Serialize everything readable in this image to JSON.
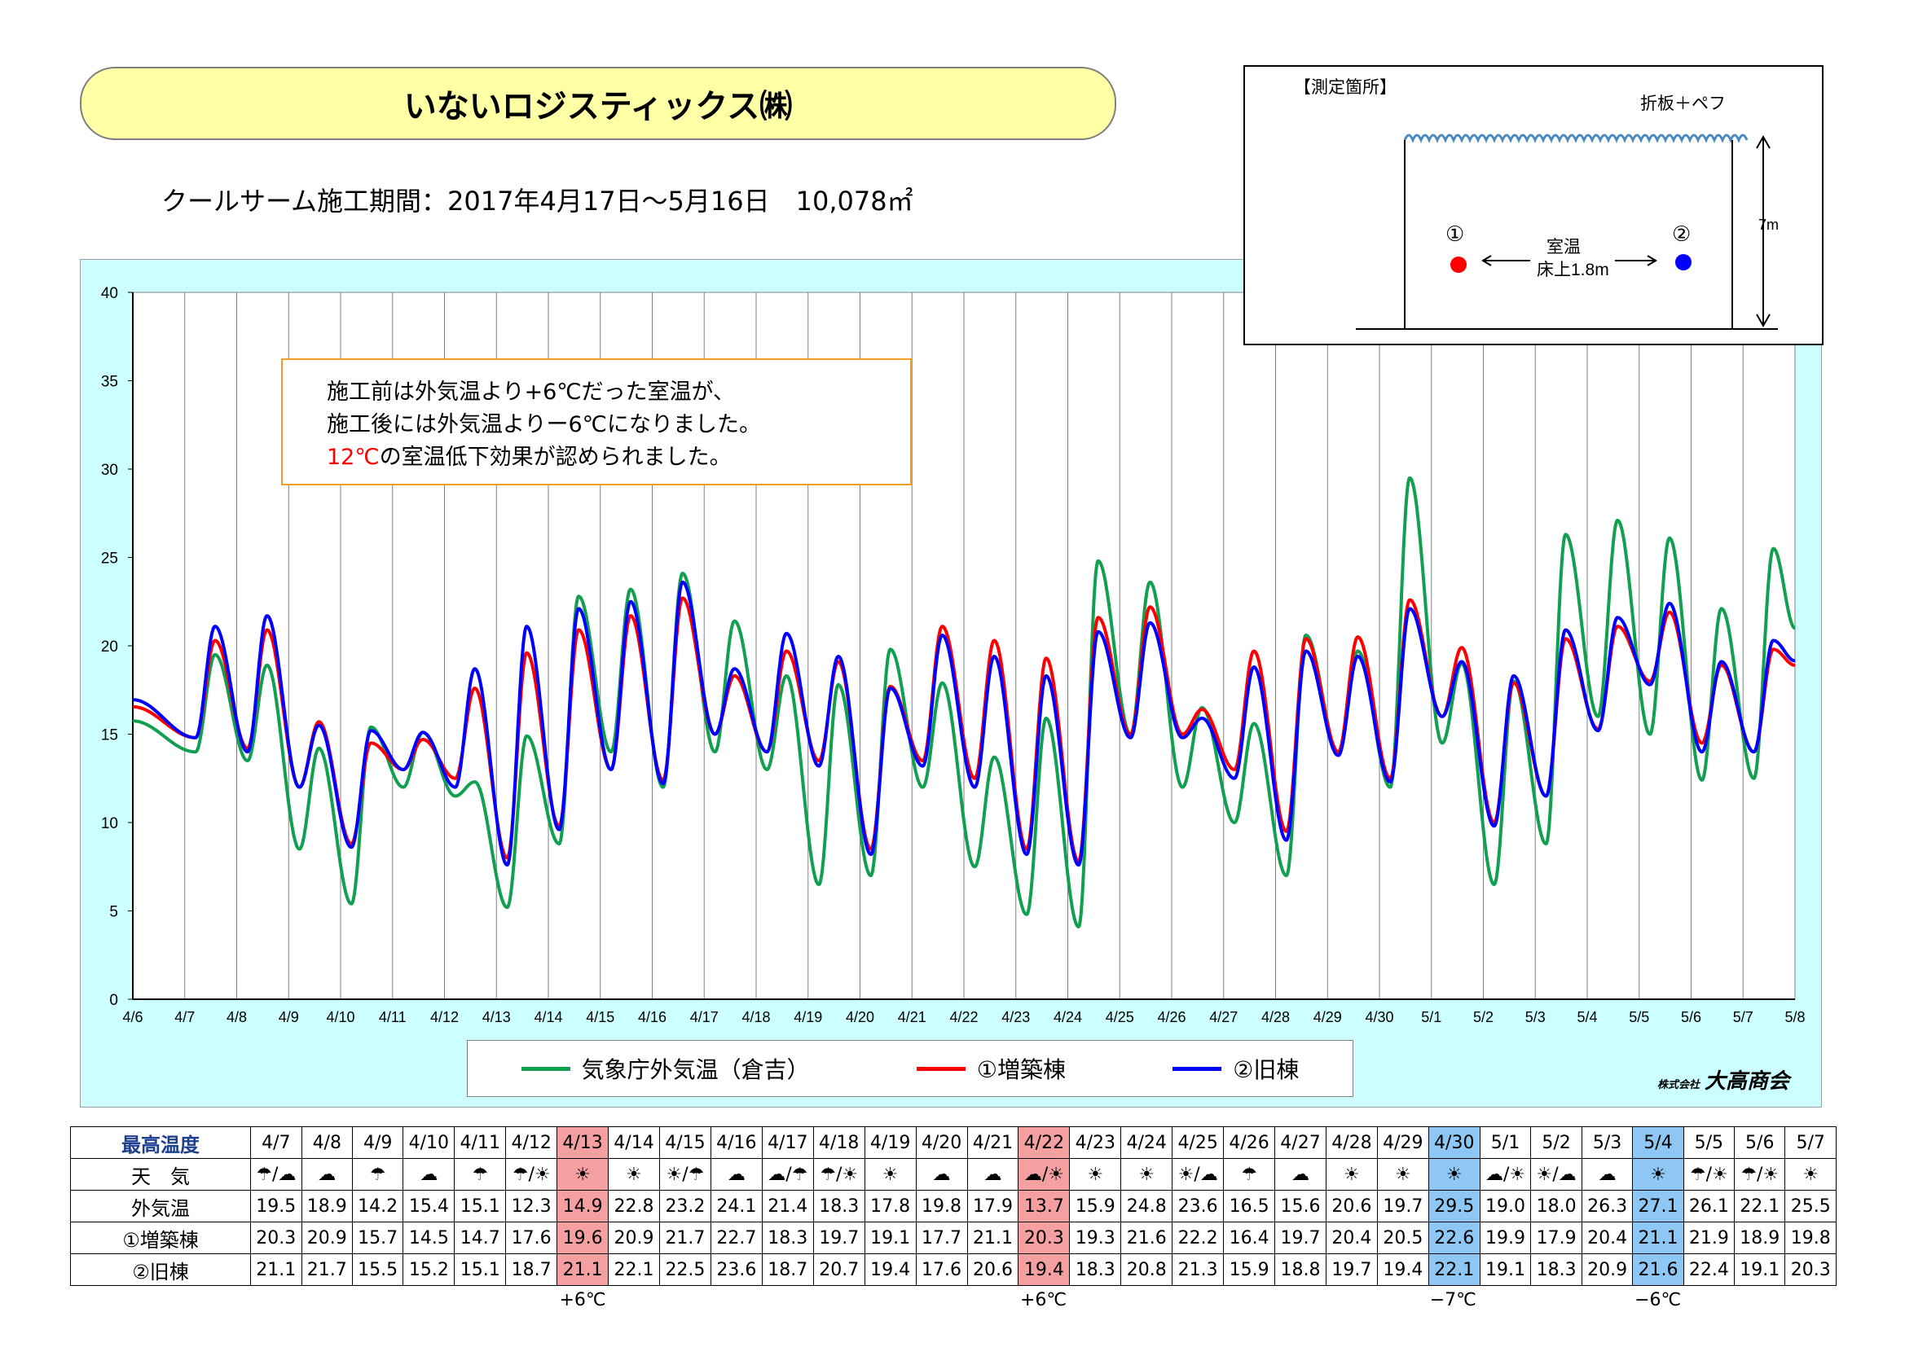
{
  "title": "いないロジスティックス㈱",
  "period": "クールサーム施工期間：2017年4月17日～5月16日　10,078㎡",
  "annotation": {
    "line1": "施工前は外気温より+6℃だった室温が、",
    "line2": "施工後には外気温よりー6℃になりました。",
    "line3_red": "12℃",
    "line3_rest": "の室温低下効果が認められました。"
  },
  "diagram": {
    "heading": "【測定箇所】",
    "roof_label": "折板＋ペフ",
    "height_label": "7m",
    "point1": "①",
    "point2": "②",
    "room_label": "室温",
    "floor_label": "床上1.8m",
    "point1_color": "#ff0000",
    "point2_color": "#0000ff"
  },
  "legend": [
    {
      "name": "気象庁外気温（倉吉）",
      "color": "#10a050"
    },
    {
      "name": "①増築棟",
      "color": "#ff0000"
    },
    {
      "name": "②旧棟",
      "color": "#0000ff"
    }
  ],
  "logo": {
    "small": "株式会社",
    "name": "大高商会"
  },
  "chart_data": {
    "type": "line",
    "ylim": [
      0,
      40
    ],
    "yticks": [
      0,
      5,
      10,
      15,
      20,
      25,
      30,
      35,
      40
    ],
    "xticks": [
      "4/6",
      "4/7",
      "4/8",
      "4/9",
      "4/10",
      "4/11",
      "4/12",
      "4/13",
      "4/14",
      "4/15",
      "4/16",
      "4/17",
      "4/18",
      "4/19",
      "4/20",
      "4/21",
      "4/22",
      "4/23",
      "4/24",
      "4/25",
      "4/26",
      "4/27",
      "4/28",
      "4/29",
      "4/30",
      "5/1",
      "5/2",
      "5/3",
      "5/4",
      "5/5",
      "5/6",
      "5/7",
      "5/8"
    ],
    "grid": true,
    "day_max": {
      "dates": [
        "4/7",
        "4/8",
        "4/9",
        "4/10",
        "4/11",
        "4/12",
        "4/13",
        "4/14",
        "4/15",
        "4/16",
        "4/17",
        "4/18",
        "4/19",
        "4/20",
        "4/21",
        "4/22",
        "4/23",
        "4/24",
        "4/25",
        "4/26",
        "4/27",
        "4/28",
        "4/29",
        "4/30",
        "5/1",
        "5/2",
        "5/3",
        "5/4",
        "5/5",
        "5/6",
        "5/7"
      ],
      "outdoor": [
        19.5,
        18.9,
        14.2,
        15.4,
        15.1,
        12.3,
        14.9,
        22.8,
        23.2,
        24.1,
        21.4,
        18.3,
        17.8,
        19.8,
        17.9,
        13.7,
        15.9,
        24.8,
        23.6,
        16.5,
        15.6,
        20.6,
        19.7,
        29.5,
        19.0,
        18.0,
        26.3,
        27.1,
        26.1,
        22.1,
        25.5
      ],
      "new_bldg": [
        20.3,
        20.9,
        15.7,
        14.5,
        14.7,
        17.6,
        19.6,
        20.9,
        21.7,
        22.7,
        18.3,
        19.7,
        19.1,
        17.7,
        21.1,
        20.3,
        19.3,
        21.6,
        22.2,
        16.4,
        19.7,
        20.4,
        20.5,
        22.6,
        19.9,
        17.9,
        20.4,
        21.1,
        21.9,
        18.9,
        19.8
      ],
      "old_bldg": [
        21.1,
        21.7,
        15.5,
        15.2,
        15.1,
        18.7,
        21.1,
        22.1,
        22.5,
        23.6,
        18.7,
        20.7,
        19.4,
        17.6,
        20.6,
        19.4,
        18.3,
        20.8,
        21.3,
        15.9,
        18.8,
        19.7,
        19.4,
        22.1,
        19.1,
        18.3,
        20.9,
        21.6,
        22.4,
        19.1,
        20.3
      ]
    },
    "day_min": {
      "outdoor": [
        14.0,
        13.5,
        8.5,
        5.4,
        12.0,
        11.5,
        5.2,
        8.8,
        14.0,
        12.0,
        14.0,
        13.0,
        6.5,
        7.0,
        12.0,
        7.5,
        4.8,
        4.1,
        15.0,
        12.0,
        10.0,
        7.0,
        14.0,
        12.0,
        14.5,
        6.5,
        8.8,
        16.0,
        15.0,
        12.4,
        12.5
      ],
      "new_bldg": [
        14.8,
        14.2,
        12.0,
        8.8,
        13.0,
        12.5,
        8.0,
        9.8,
        13.0,
        12.4,
        15.0,
        14.0,
        13.5,
        8.5,
        13.5,
        12.5,
        8.5,
        7.8,
        15.0,
        15.0,
        13.0,
        9.5,
        14.0,
        12.5,
        16.0,
        10.0,
        11.5,
        15.3,
        18.0,
        14.5,
        14.0
      ],
      "old_bldg": [
        14.8,
        14.0,
        12.0,
        8.6,
        13.0,
        12.0,
        7.6,
        9.6,
        13.0,
        12.2,
        15.0,
        14.0,
        13.2,
        8.2,
        13.2,
        12.0,
        8.2,
        7.6,
        14.8,
        14.8,
        12.5,
        9.0,
        13.8,
        12.3,
        16.0,
        9.8,
        11.5,
        15.2,
        17.8,
        14.0,
        14.0
      ]
    },
    "series": [
      {
        "name": "気象庁外気温（倉吉）",
        "key": "outdoor",
        "color": "#10a050"
      },
      {
        "name": "①増築棟",
        "key": "new_bldg",
        "color": "#ff0000"
      },
      {
        "name": "②旧棟",
        "key": "old_bldg",
        "color": "#0000ff"
      }
    ]
  },
  "table": {
    "header_label": "最高温度",
    "weather_label": "天　気",
    "outdoor_label": "外気温",
    "new_label": "①増築棟",
    "old_label": "②旧棟",
    "dates": [
      "4/7",
      "4/8",
      "4/9",
      "4/10",
      "4/11",
      "4/12",
      "4/13",
      "4/14",
      "4/15",
      "4/16",
      "4/17",
      "4/18",
      "4/19",
      "4/20",
      "4/21",
      "4/22",
      "4/23",
      "4/24",
      "4/25",
      "4/26",
      "4/27",
      "4/28",
      "4/29",
      "4/30",
      "5/1",
      "5/2",
      "5/3",
      "5/4",
      "5/5",
      "5/6",
      "5/7"
    ],
    "weather": [
      "☂/☁",
      "☁",
      "☂",
      "☁",
      "☂",
      "☂/☀",
      "☀",
      "☀",
      "☀/☂",
      "☁",
      "☁/☂",
      "☂/☀",
      "☀",
      "☁",
      "☁",
      "☁/☀",
      "☀",
      "☀",
      "☀/☁",
      "☂",
      "☁",
      "☀",
      "☀",
      "☀",
      "☁/☀",
      "☀/☁",
      "☁",
      "☀",
      "☂/☀",
      "☂/☀",
      "☀"
    ],
    "highlight_red": [
      6,
      15
    ],
    "highlight_blue": [
      23,
      27
    ],
    "red_color": "#f4a0a0",
    "blue_color": "#8ec6f4"
  },
  "table_notes": [
    {
      "label": "+6℃",
      "col": 6
    },
    {
      "label": "+6℃",
      "col": 15
    },
    {
      "label": "−7℃",
      "col": 23
    },
    {
      "label": "−6℃",
      "col": 27
    }
  ]
}
